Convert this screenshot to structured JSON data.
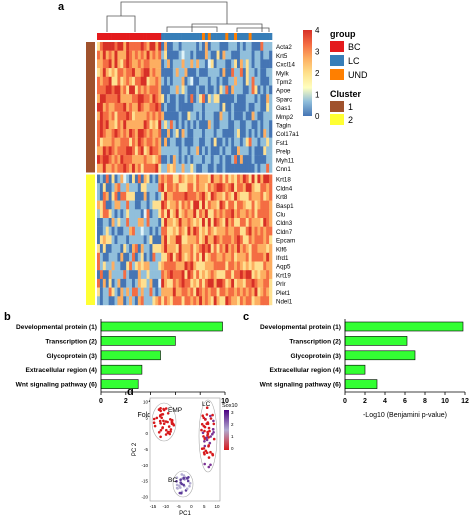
{
  "panels": {
    "a": "a",
    "b": "b",
    "c": "c",
    "d": "d"
  },
  "heatmap": {
    "genes_cluster1": [
      "Acta2",
      "Krt5",
      "Cxcl14",
      "Mylk",
      "Tpm2",
      "Apoe",
      "Sparc",
      "Gas1",
      "Mmp2",
      "Tagln",
      "Col17a1",
      "Fst1",
      "Prelp",
      "Myh11",
      "Cnn1"
    ],
    "genes_cluster2": [
      "Krt18",
      "Cldn4",
      "Krt8",
      "Basp1",
      "Clu",
      "Cldn3",
      "Cldn7",
      "Epcam",
      "Klf6",
      "Ifrd1",
      "Aqp5",
      "Krt19",
      "Prlr",
      "Plet1",
      "Ndel1"
    ],
    "color_scale": {
      "title": "",
      "ticks": [
        "4",
        "3",
        "2",
        "1",
        "0"
      ],
      "colors": [
        "#d73027",
        "#f46d43",
        "#fdae61",
        "#fee08b",
        "#ffffbf",
        "#91bfdb",
        "#4575b4"
      ]
    }
  },
  "legend": {
    "group_title": "group",
    "group_items": [
      {
        "label": "BC",
        "color": "#e41a1c"
      },
      {
        "label": "LC",
        "color": "#377eb8"
      },
      {
        "label": "UND",
        "color": "#ff7f00"
      }
    ],
    "cluster_title": "Cluster",
    "cluster_items": [
      {
        "label": "1",
        "color": "#a0522d"
      },
      {
        "label": "2",
        "color": "#ffff33"
      }
    ]
  },
  "chart_data": [
    {
      "type": "bar",
      "panel": "b",
      "orientation": "horizontal",
      "categories": [
        "Developmental protein (1)",
        "Transcription (2)",
        "Glycoprotein (3)",
        "Extracellular region (4)",
        "Wnt signaling pathway (6)"
      ],
      "values": [
        9.8,
        6.0,
        4.8,
        3.3,
        3.0
      ],
      "xlabel": "Fold Enrichment",
      "xlim": [
        0,
        10
      ],
      "xticks": [
        "0",
        "2",
        "4",
        "6",
        "8",
        "10"
      ],
      "bar_color": "#33ff33"
    },
    {
      "type": "bar",
      "panel": "c",
      "orientation": "horizontal",
      "categories": [
        "Developmental protein (1)",
        "Transcription (2)",
        "Glycoprotein (3)",
        "Extracellular region (4)",
        "Wnt signaling pathway (6)"
      ],
      "values": [
        11.8,
        6.2,
        7.0,
        2.0,
        3.2
      ],
      "xlabel": "-Log10 (Benjamini p-value)",
      "xlim": [
        0,
        12
      ],
      "xticks": [
        "0",
        "2",
        "4",
        "6",
        "8",
        "10",
        "12"
      ],
      "bar_color": "#33ff33"
    },
    {
      "type": "scatter",
      "panel": "d",
      "xlabel": "PC1",
      "ylabel": "PC 2",
      "xticks": [
        "-15",
        "-10",
        "-5",
        "0",
        "5",
        "10"
      ],
      "yticks": [
        "10",
        "5",
        "0",
        "-5",
        "-10",
        "-15",
        "-20"
      ],
      "groups": [
        "EMP",
        "LC",
        "BC"
      ],
      "colorbar_title": "Sox10",
      "colorbar_ticks": [
        "3",
        "2",
        "1",
        "0"
      ]
    }
  ]
}
